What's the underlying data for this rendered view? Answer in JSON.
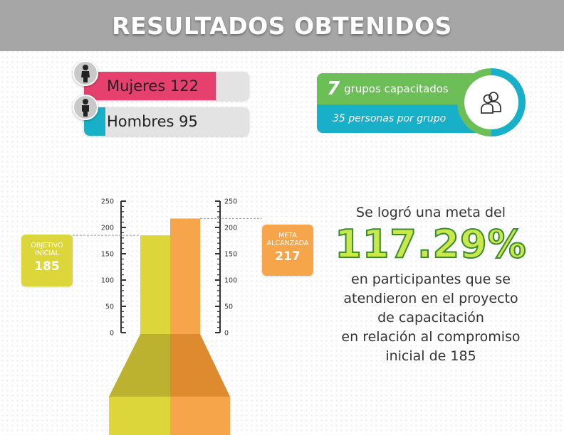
{
  "header": {
    "title": "RESULTADOS OBTENIDOS"
  },
  "gender": {
    "mujeres": {
      "label": "Mujeres 122",
      "value": 122,
      "color": "#e5406e",
      "icon": "woman-icon"
    },
    "hombres": {
      "label": "Hombres 95",
      "value": 95,
      "color": "#17b0c8",
      "icon": "man-icon"
    }
  },
  "groups": {
    "count": "7",
    "count_label": "grupos capacitados",
    "per_group": "35 personas por grupo",
    "icon": "people-icon",
    "colors": {
      "green": "#6cbf57",
      "teal": "#17b0c8"
    }
  },
  "chart_data": {
    "type": "bar",
    "categories": [
      "OBJETIVO INICIAL",
      "META ALCANZADA"
    ],
    "values": [
      185,
      217
    ],
    "ylim": [
      0,
      250
    ],
    "yticks": [
      "250",
      "200",
      "150",
      "100",
      "50",
      "0"
    ],
    "colors": [
      "#dcd63a",
      "#f6a54a"
    ],
    "annotations": [
      {
        "label": "OBJETIVO INICIAL",
        "value": "185"
      },
      {
        "label": "META ALCANZADA",
        "value": "217"
      }
    ],
    "grid": false
  },
  "summary": {
    "line1": "Se logró una meta del",
    "percentage": "117.29%",
    "body_lines": [
      "en participantes que se",
      "atendieron en el proyecto",
      "de capacitación",
      "en relación al compromiso",
      "inicial de 185"
    ]
  }
}
